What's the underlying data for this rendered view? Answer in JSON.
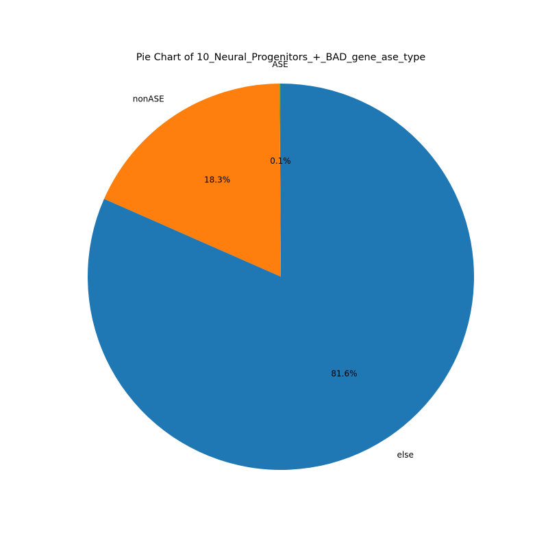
{
  "chart_data": {
    "type": "pie",
    "title": "Pie Chart of 10_Neural_Progenitors_+_BAD_gene_ase_type",
    "slices": [
      {
        "label": "ASE",
        "value": 0.1,
        "pct_label": "0.1%",
        "color": "#2ca02c"
      },
      {
        "label": "nonASE",
        "value": 18.3,
        "pct_label": "18.3%",
        "color": "#ff7f0e"
      },
      {
        "label": "else",
        "value": 81.6,
        "pct_label": "81.6%",
        "color": "#1f77b4"
      }
    ],
    "start_angle_deg": 90,
    "direction": "counterclockwise",
    "legend": "none"
  }
}
